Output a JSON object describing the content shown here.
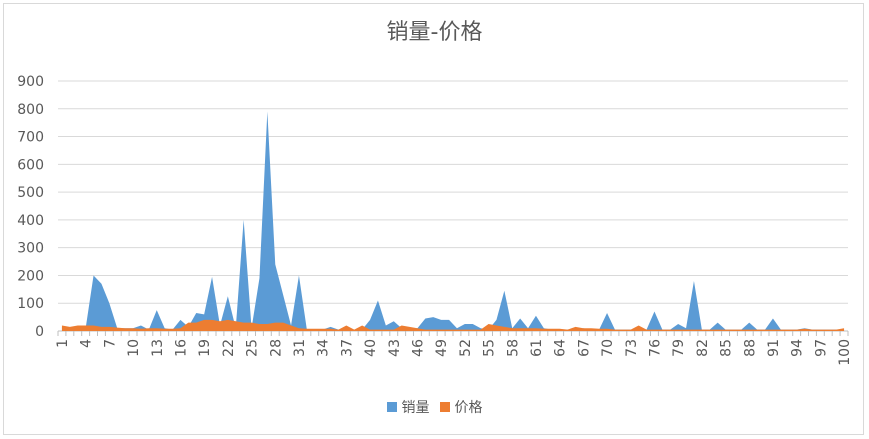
{
  "chart_data": {
    "type": "area",
    "title": "销量-价格",
    "xlabel": "",
    "ylabel": "",
    "ylim": [
      0,
      900
    ],
    "yticks": [
      "0",
      "100",
      "200",
      "300",
      "400",
      "500",
      "600",
      "700",
      "800",
      "900"
    ],
    "xticks": [
      "1",
      "4",
      "7",
      "10",
      "13",
      "16",
      "19",
      "22",
      "25",
      "28",
      "31",
      "34",
      "37",
      "40",
      "43",
      "46",
      "49",
      "52",
      "55",
      "58",
      "61",
      "64",
      "67",
      "70",
      "73",
      "76",
      "79",
      "82",
      "85",
      "88",
      "91",
      "94",
      "97",
      "100"
    ],
    "grid": true,
    "legend_position": "bottom",
    "x": [
      1,
      2,
      3,
      4,
      5,
      6,
      7,
      8,
      9,
      10,
      11,
      12,
      13,
      14,
      15,
      16,
      17,
      18,
      19,
      20,
      21,
      22,
      23,
      24,
      25,
      26,
      27,
      28,
      29,
      30,
      31,
      32,
      33,
      34,
      35,
      36,
      37,
      38,
      39,
      40,
      41,
      42,
      43,
      44,
      45,
      46,
      47,
      48,
      49,
      50,
      51,
      52,
      53,
      54,
      55,
      56,
      57,
      58,
      59,
      60,
      61,
      62,
      63,
      64,
      65,
      66,
      67,
      68,
      69,
      70,
      71,
      72,
      73,
      74,
      75,
      76,
      77,
      78,
      79,
      80,
      81,
      82,
      83,
      84,
      85,
      86,
      87,
      88,
      89,
      90,
      91,
      92,
      93,
      94,
      95,
      96,
      97,
      98,
      99,
      100
    ],
    "series": [
      {
        "name": "销量",
        "color": "#5b9bd5",
        "values": [
          15,
          5,
          10,
          10,
          200,
          170,
          100,
          10,
          10,
          10,
          20,
          5,
          75,
          10,
          5,
          40,
          15,
          65,
          60,
          195,
          20,
          125,
          10,
          400,
          10,
          190,
          790,
          240,
          130,
          20,
          200,
          5,
          5,
          5,
          15,
          5,
          5,
          5,
          5,
          40,
          110,
          20,
          35,
          10,
          10,
          10,
          45,
          50,
          40,
          40,
          10,
          25,
          25,
          10,
          5,
          40,
          145,
          10,
          45,
          10,
          55,
          10,
          5,
          5,
          5,
          5,
          10,
          5,
          5,
          65,
          5,
          5,
          5,
          5,
          5,
          70,
          5,
          5,
          25,
          10,
          180,
          5,
          5,
          30,
          5,
          5,
          5,
          30,
          5,
          5,
          45,
          5,
          5,
          5,
          10,
          5,
          5,
          5,
          5,
          5
        ]
      },
      {
        "name": "价格",
        "color": "#ed7d31",
        "values": [
          20,
          15,
          20,
          20,
          20,
          15,
          15,
          12,
          10,
          10,
          8,
          10,
          10,
          8,
          8,
          10,
          30,
          30,
          40,
          40,
          35,
          40,
          35,
          30,
          30,
          25,
          25,
          30,
          30,
          20,
          10,
          8,
          8,
          8,
          8,
          5,
          20,
          5,
          20,
          5,
          5,
          5,
          5,
          20,
          15,
          10,
          5,
          5,
          5,
          5,
          5,
          5,
          5,
          5,
          25,
          20,
          15,
          10,
          10,
          10,
          10,
          8,
          8,
          8,
          5,
          15,
          10,
          10,
          8,
          8,
          5,
          5,
          5,
          20,
          5,
          5,
          5,
          5,
          5,
          5,
          5,
          5,
          5,
          5,
          5,
          5,
          5,
          5,
          5,
          5,
          5,
          5,
          5,
          5,
          8,
          5,
          5,
          5,
          5,
          10
        ]
      }
    ]
  }
}
